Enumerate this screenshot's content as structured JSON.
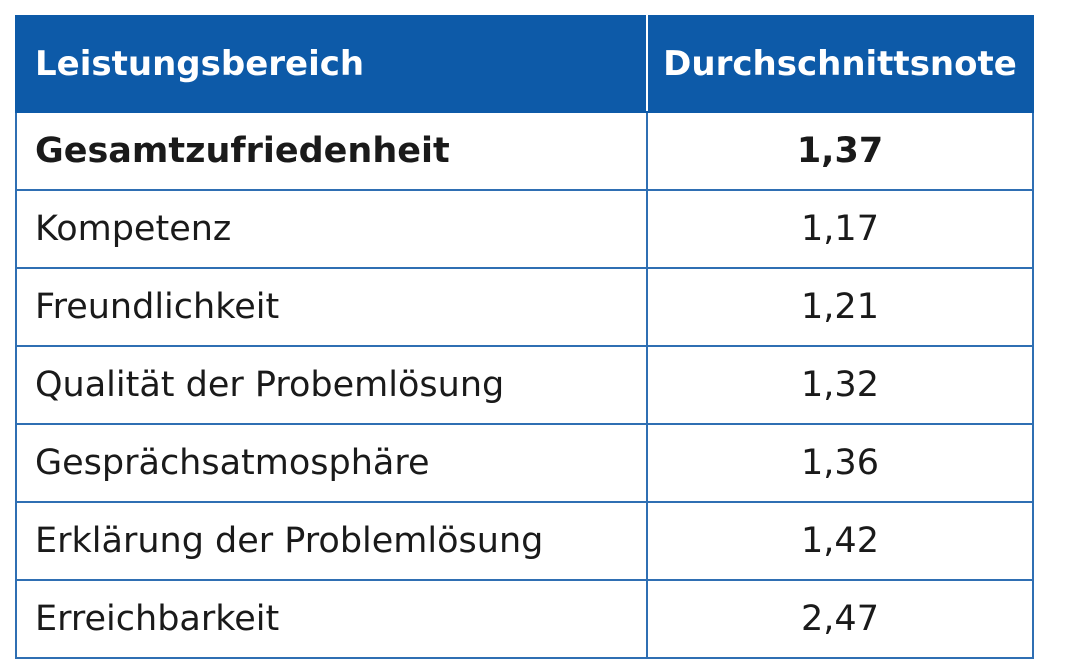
{
  "table": {
    "headers": [
      "Leistungsbereich",
      "Durchschnittsnote"
    ],
    "rows": [
      {
        "label": "Gesamtzufriedenheit",
        "value": "1,37",
        "bold": true
      },
      {
        "label": "Kompetenz",
        "value": "1,17",
        "bold": false
      },
      {
        "label": "Freundlichkeit",
        "value": "1,21",
        "bold": false
      },
      {
        "label": "Qualität der Probemlösung",
        "value": "1,32",
        "bold": false
      },
      {
        "label": "Gesprächsatmosphäre",
        "value": "1,36",
        "bold": false
      },
      {
        "label": "Erklärung der Problemlösung",
        "value": "1,42",
        "bold": false
      },
      {
        "label": "Erreichbarkeit",
        "value": "2,47",
        "bold": false
      }
    ]
  },
  "colors": {
    "header_bg": "#0d5aa8",
    "header_text": "#ffffff",
    "border": "#2f6fb3",
    "text": "#1a1a1a"
  }
}
